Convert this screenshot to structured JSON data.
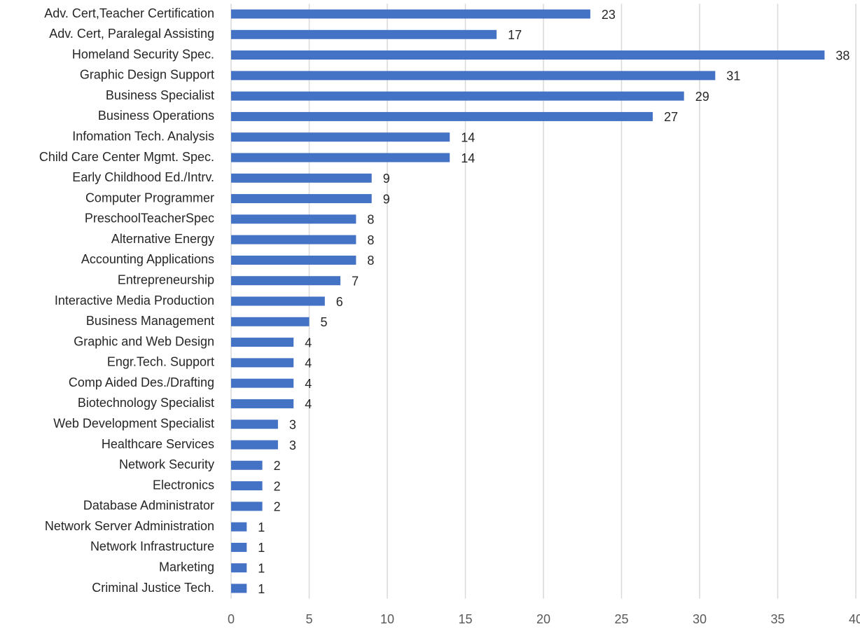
{
  "chart_data": {
    "type": "bar",
    "orientation": "horizontal",
    "categories": [
      "Adv. Cert,Teacher Certification",
      "Adv. Cert, Paralegal Assisting",
      "Homeland Security Spec.",
      "Graphic Design Support",
      "Business Specialist",
      "Business Operations",
      "Infomation Tech. Analysis",
      "Child Care Center Mgmt. Spec.",
      "Early Childhood Ed./Intrv.",
      "Computer Programmer",
      "PreschoolTeacherSpec",
      "Alternative Energy",
      "Accounting Applications",
      "Entrepreneurship",
      "Interactive Media Production",
      "Business Management",
      "Graphic and Web Design",
      "Engr.Tech. Support",
      "Comp Aided Des./Drafting",
      "Biotechnology Specialist",
      "Web Development Specialist",
      "Healthcare Services",
      "Network Security",
      "Electronics",
      "Database Administrator",
      "Network Server Administration",
      "Network Infrastructure",
      "Marketing",
      "Criminal Justice Tech."
    ],
    "values": [
      23,
      17,
      38,
      31,
      29,
      27,
      14,
      14,
      9,
      9,
      8,
      8,
      8,
      7,
      6,
      5,
      4,
      4,
      4,
      4,
      3,
      3,
      2,
      2,
      2,
      1,
      1,
      1,
      1
    ],
    "color": "#4472c4",
    "xlim": [
      0,
      40
    ],
    "xticks": [
      0,
      5,
      10,
      15,
      20,
      25,
      30,
      35,
      40
    ],
    "grid": true
  }
}
